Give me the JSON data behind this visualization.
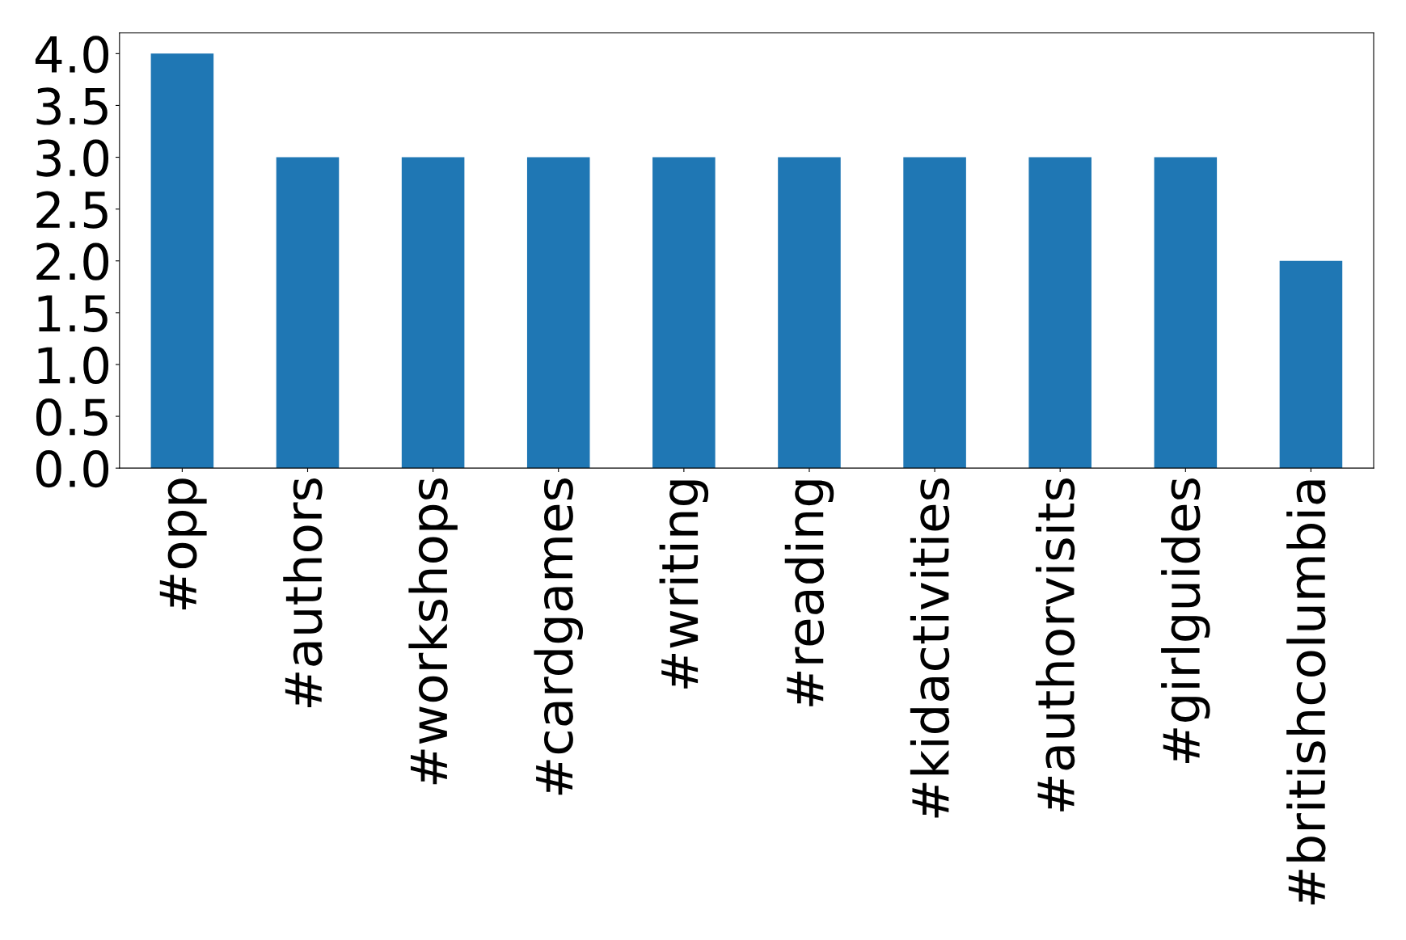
{
  "chart_data": {
    "type": "bar",
    "categories": [
      "#opp",
      "#authors",
      "#workshops",
      "#cardgames",
      "#writing",
      "#reading",
      "#kidactivities",
      "#authorvisits",
      "#girlguides",
      "#britishcolumbia"
    ],
    "values": [
      4,
      3,
      3,
      3,
      3,
      3,
      3,
      3,
      3,
      2
    ],
    "color": "#1f77b4",
    "ylim": [
      0,
      4.2
    ],
    "yticks": [
      {
        "value": 0,
        "label": "0.0"
      },
      {
        "value": 0.5,
        "label": "0.5"
      },
      {
        "value": 1,
        "label": "1.0"
      },
      {
        "value": 1.5,
        "label": "1.5"
      },
      {
        "value": 2,
        "label": "2.0"
      },
      {
        "value": 2.5,
        "label": "2.5"
      },
      {
        "value": 3,
        "label": "3.0"
      },
      {
        "value": 3.5,
        "label": "3.5"
      },
      {
        "value": 4,
        "label": "4.0"
      }
    ],
    "grid": false
  }
}
